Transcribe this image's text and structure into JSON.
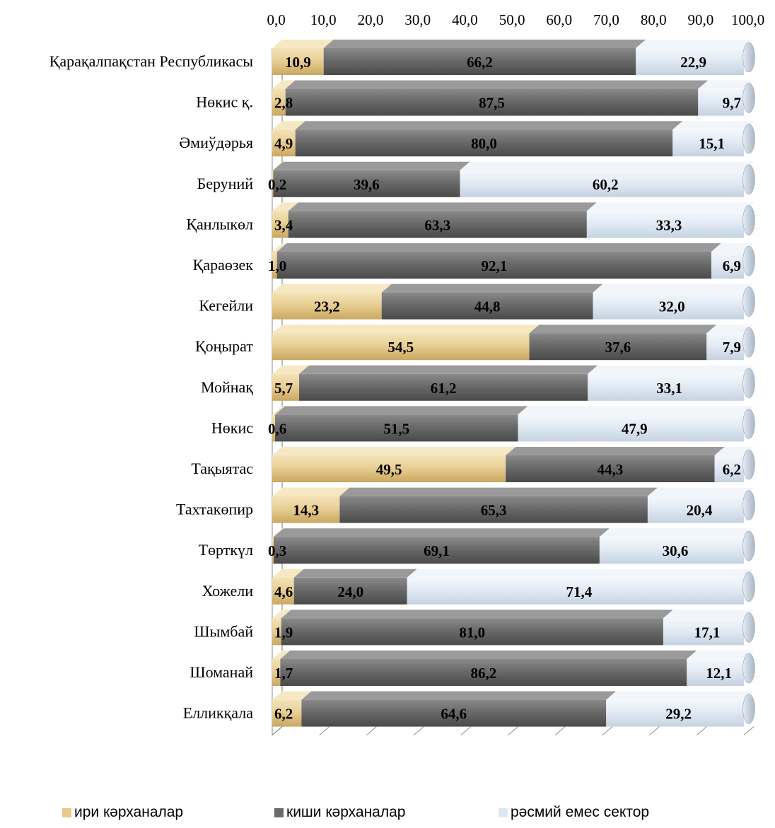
{
  "chart_data": {
    "type": "bar",
    "orientation": "horizontal-stacked-3d",
    "xlim": [
      0,
      100
    ],
    "ticks": [
      "0,0",
      "10,0",
      "20,0",
      "30,0",
      "40,0",
      "50,0",
      "60,0",
      "70,0",
      "80,0",
      "90,0",
      "100,0"
    ],
    "categories": [
      "Қарақалпақстан Республикасы",
      "Нөкис қ.",
      "Әмиўдәрья",
      "Беруний",
      "Қанлыкөл",
      "Қараөзек",
      "Кегейли",
      "Қоңырат",
      "Мойнақ",
      "Нөкис",
      "Тақыятас",
      "Тахтакөпир",
      "Төрткүл",
      "Хожели",
      "Шымбай",
      "Шоманай",
      "Елликқала"
    ],
    "series": [
      {
        "name": "ири кәрханалар",
        "color": "#e8c98a",
        "values": [
          10.9,
          2.8,
          4.9,
          0.2,
          3.4,
          1.0,
          23.2,
          54.5,
          5.7,
          0.6,
          49.5,
          14.3,
          0.3,
          4.6,
          1.9,
          1.7,
          6.2
        ],
        "labels": [
          "10,9",
          "2,8",
          "4,9",
          "0,2",
          "3,4",
          "1,0",
          "23,2",
          "54,5",
          "5,7",
          "0,6",
          "49,5",
          "14,3",
          "0,3",
          "4,6",
          "1,9",
          "1,7",
          "6,2"
        ]
      },
      {
        "name": "киши кәрханалар",
        "color": "#6b6b6b",
        "values": [
          66.2,
          87.5,
          80.0,
          39.6,
          63.3,
          92.1,
          44.8,
          37.6,
          61.2,
          51.5,
          44.3,
          65.3,
          69.1,
          24.0,
          81.0,
          86.2,
          64.6
        ],
        "labels": [
          "66,2",
          "87,5",
          "80,0",
          "39,6",
          "63,3",
          "92,1",
          "44,8",
          "37,6",
          "61,2",
          "51,5",
          "44,3",
          "65,3",
          "69,1",
          "24,0",
          "81,0",
          "86,2",
          "64,6"
        ]
      },
      {
        "name": "рәсмий емес сектор",
        "color": "#dde8f4",
        "values": [
          22.9,
          9.7,
          15.1,
          60.2,
          33.3,
          6.9,
          32.0,
          7.9,
          33.1,
          47.9,
          6.2,
          20.4,
          30.6,
          71.4,
          17.1,
          12.1,
          29.2
        ],
        "labels": [
          "22,9",
          "9,7",
          "15,1",
          "60,2",
          "33,3",
          "6,9",
          "32,0",
          "7,9",
          "33,1",
          "47,9",
          "6,2",
          "20,4",
          "30,6",
          "71,4",
          "17,1",
          "12,1",
          "29,2"
        ]
      }
    ],
    "legend_position": "bottom"
  }
}
